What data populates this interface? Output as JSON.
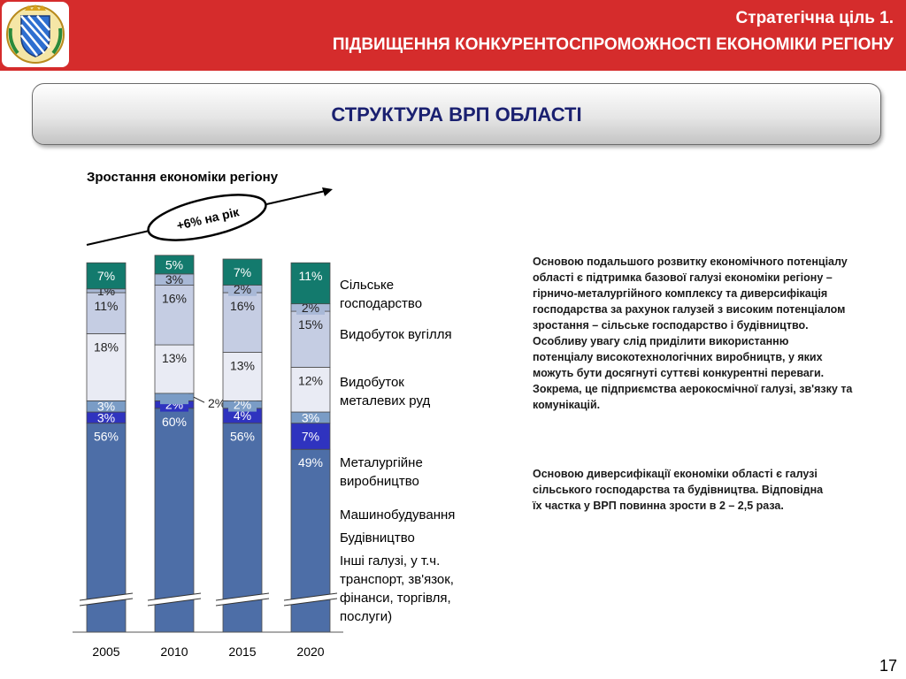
{
  "header": {
    "line1": "Стратегічна ціль 1.",
    "line2": "ПІДВИЩЕННЯ КОНКУРЕНТОСПРОМОЖНОСТІ ЕКОНОМІКИ РЕГІОНУ"
  },
  "banner": {
    "title": "СТРУКТУРА ВРП ОБЛАСТІ"
  },
  "chart_data": {
    "type": "bar",
    "stacked": true,
    "title": "Зростання економіки регіону",
    "growth_label": "+6% на рік",
    "categories": [
      "2005",
      "2010",
      "2015",
      "2020"
    ],
    "axis_break": true,
    "series": [
      {
        "name": "Інші галузі, у т.ч. транспорт, зв'язок, фінанси, торгівля, послуги)",
        "values": [
          56,
          60,
          56,
          49
        ],
        "color": "#4d6ea7",
        "text_color": "#ffffff"
      },
      {
        "name": "Будівництво",
        "values": [
          3,
          2,
          4,
          7
        ],
        "color": "#2f33bf",
        "text_color": "#ffffff"
      },
      {
        "name": "Машинобудування",
        "values": [
          3,
          2,
          2,
          3
        ],
        "color": "#7a9cc6",
        "text_color": "#ffffff"
      },
      {
        "name": "Металургійне виробництво",
        "values": [
          18,
          13,
          13,
          12
        ],
        "color": "#e9ebf4",
        "text_color": "#222222"
      },
      {
        "name": "Видобуток металевих руд",
        "values": [
          11,
          16,
          16,
          15
        ],
        "color": "#c5cde3",
        "text_color": "#222222"
      },
      {
        "name": "Видобуток вугілля",
        "values": [
          1,
          3,
          2,
          2
        ],
        "color": "#a8b8d6",
        "text_color": "#222222"
      },
      {
        "name": "Сільське господарство",
        "values": [
          7,
          5,
          7,
          11
        ],
        "color": "#137a6d",
        "text_color": "#ffffff"
      }
    ],
    "legend": [
      [
        "Сільське",
        "господарство"
      ],
      [
        "Видобуток вугілля"
      ],
      [
        "Видобуток",
        "металевих руд"
      ],
      [
        "Металургійне",
        "виробництво"
      ],
      [
        "Машинобудування"
      ],
      [
        "Будівництво"
      ],
      [
        "Інші галузі, у т.ч.",
        "транспорт, зв'язок,",
        "фінанси, торгівля,",
        "послуги)"
      ]
    ],
    "legend_position": "right",
    "grid": false
  },
  "text": {
    "p1": [
      "Основою подальшого розвитку економічного потенціалу",
      "області  є підтримка базової галузі економіки регіону –",
      "гірничо-металургійного комплексу та диверсифікація",
      "господарства за рахунок галузей з високим потенціалом",
      "зростання – сільське господарство і будівництво.",
      "Особливу увагу слід приділити  використанню",
      "потенціалу високотехнологічних  виробництв, у яких",
      "можуть бути досягнуті суттєві конкурентні переваги.",
      "Зокрема, це підприємства аерокосмічної галузі, зв'язку та",
      "комунікацій."
    ],
    "p2": [
      "Основою  диверсифікації економіки області є галузі",
      "сільського господарства  та будівництва.  Відповідна",
      "їх частка у ВРП повинна зрости в 2 – 2,5 раза."
    ]
  },
  "page": {
    "number": "17"
  }
}
